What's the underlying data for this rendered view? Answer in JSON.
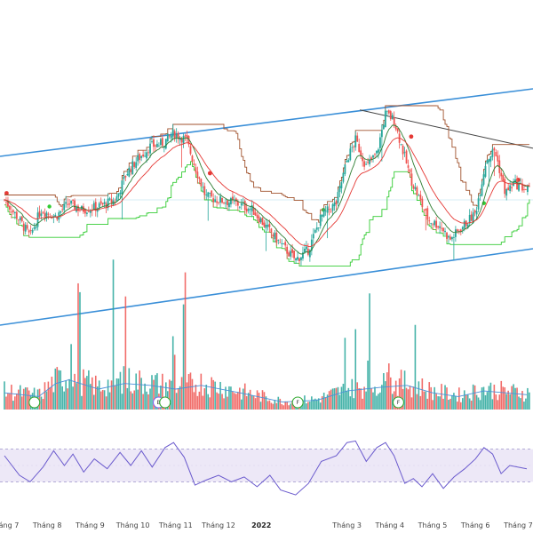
{
  "chart_data": {
    "type": "candlestick",
    "colors": {
      "up": "#26a69a",
      "down": "#ef5350",
      "channel": "#3a8fd8",
      "trendline": "#444444",
      "ema_fast": "#2e7d32",
      "ema_slow": "#e53935",
      "resistance_step": "#a0522d",
      "support_step": "#33cc33",
      "volume_ma": "#4a90d9",
      "rsi_line": "#6a5acd",
      "rsi_band": "#ede8f7",
      "rsi_band_border": "#9a8fc9",
      "signal_circle": "#33aa33",
      "signal_circle_b": "#7b68ee",
      "axis_grid": "#e8e8e8"
    },
    "x_axis": {
      "ticks": [
        "Tháng 7",
        "Tháng 8",
        "Tháng 9",
        "Tháng 10",
        "Tháng 11",
        "Tháng 12",
        "2022",
        "Tháng 3",
        "Tháng 4",
        "Tháng 5",
        "Tháng 6",
        "Tháng 7"
      ],
      "tick_positions_months": [
        0,
        1,
        2,
        3,
        4,
        5,
        6,
        8,
        9,
        10,
        11,
        12
      ]
    },
    "price_path": [
      {
        "m": 0.0,
        "v": 58
      },
      {
        "m": 0.35,
        "v": 52
      },
      {
        "m": 0.6,
        "v": 47
      },
      {
        "m": 0.85,
        "v": 55
      },
      {
        "m": 1.2,
        "v": 53
      },
      {
        "m": 1.5,
        "v": 57
      },
      {
        "m": 1.8,
        "v": 55
      },
      {
        "m": 2.2,
        "v": 56
      },
      {
        "m": 2.6,
        "v": 58
      },
      {
        "m": 2.85,
        "v": 66
      },
      {
        "m": 3.1,
        "v": 70
      },
      {
        "m": 3.4,
        "v": 74
      },
      {
        "m": 3.7,
        "v": 75
      },
      {
        "m": 3.95,
        "v": 78
      },
      {
        "m": 4.25,
        "v": 76
      },
      {
        "m": 4.45,
        "v": 68
      },
      {
        "m": 4.7,
        "v": 59
      },
      {
        "m": 5.0,
        "v": 58
      },
      {
        "m": 5.4,
        "v": 57
      },
      {
        "m": 5.8,
        "v": 55
      },
      {
        "m": 6.1,
        "v": 50
      },
      {
        "m": 6.5,
        "v": 44
      },
      {
        "m": 6.8,
        "v": 40
      },
      {
        "m": 7.1,
        "v": 43
      },
      {
        "m": 7.4,
        "v": 53
      },
      {
        "m": 7.75,
        "v": 57
      },
      {
        "m": 8.0,
        "v": 70
      },
      {
        "m": 8.2,
        "v": 76
      },
      {
        "m": 8.45,
        "v": 68
      },
      {
        "m": 8.7,
        "v": 72
      },
      {
        "m": 8.9,
        "v": 84
      },
      {
        "m": 9.1,
        "v": 82
      },
      {
        "m": 9.3,
        "v": 73
      },
      {
        "m": 9.5,
        "v": 64
      },
      {
        "m": 9.7,
        "v": 58
      },
      {
        "m": 9.9,
        "v": 52
      },
      {
        "m": 10.2,
        "v": 50
      },
      {
        "m": 10.4,
        "v": 46
      },
      {
        "m": 10.7,
        "v": 50
      },
      {
        "m": 11.0,
        "v": 54
      },
      {
        "m": 11.25,
        "v": 70
      },
      {
        "m": 11.45,
        "v": 73
      },
      {
        "m": 11.7,
        "v": 60
      },
      {
        "m": 11.9,
        "v": 63
      },
      {
        "m": 12.2,
        "v": 61
      }
    ],
    "volume_profile": [
      {
        "m": 0.0,
        "v": 18
      },
      {
        "m": 0.8,
        "v": 14
      },
      {
        "m": 1.2,
        "v": 28
      },
      {
        "m": 1.5,
        "v": 32
      },
      {
        "m": 2.2,
        "v": 22
      },
      {
        "m": 2.8,
        "v": 28
      },
      {
        "m": 3.4,
        "v": 26
      },
      {
        "m": 4.0,
        "v": 22
      },
      {
        "m": 4.6,
        "v": 26
      },
      {
        "m": 5.5,
        "v": 18
      },
      {
        "m": 6.5,
        "v": 8
      },
      {
        "m": 7.3,
        "v": 10
      },
      {
        "m": 8.0,
        "v": 20
      },
      {
        "m": 8.8,
        "v": 24
      },
      {
        "m": 9.4,
        "v": 26
      },
      {
        "m": 10.0,
        "v": 18
      },
      {
        "m": 10.6,
        "v": 14
      },
      {
        "m": 11.2,
        "v": 20
      },
      {
        "m": 12.2,
        "v": 16
      }
    ],
    "volume_spikes_months": [
      1.55,
      1.75,
      2.55,
      2.8,
      3.95,
      4.2,
      7.95,
      8.2,
      8.5,
      8.95,
      9.6
    ],
    "rsi": [
      {
        "m": 0.0,
        "v": 62
      },
      {
        "m": 0.35,
        "v": 38
      },
      {
        "m": 0.6,
        "v": 30
      },
      {
        "m": 0.9,
        "v": 48
      },
      {
        "m": 1.15,
        "v": 68
      },
      {
        "m": 1.4,
        "v": 50
      },
      {
        "m": 1.6,
        "v": 64
      },
      {
        "m": 1.85,
        "v": 42
      },
      {
        "m": 2.1,
        "v": 58
      },
      {
        "m": 2.4,
        "v": 46
      },
      {
        "m": 2.7,
        "v": 66
      },
      {
        "m": 2.95,
        "v": 50
      },
      {
        "m": 3.2,
        "v": 68
      },
      {
        "m": 3.45,
        "v": 48
      },
      {
        "m": 3.75,
        "v": 72
      },
      {
        "m": 3.95,
        "v": 78
      },
      {
        "m": 4.2,
        "v": 60
      },
      {
        "m": 4.45,
        "v": 26
      },
      {
        "m": 4.7,
        "v": 32
      },
      {
        "m": 5.0,
        "v": 38
      },
      {
        "m": 5.3,
        "v": 30
      },
      {
        "m": 5.6,
        "v": 36
      },
      {
        "m": 5.9,
        "v": 24
      },
      {
        "m": 6.2,
        "v": 38
      },
      {
        "m": 6.45,
        "v": 20
      },
      {
        "m": 6.8,
        "v": 14
      },
      {
        "m": 7.1,
        "v": 28
      },
      {
        "m": 7.4,
        "v": 55
      },
      {
        "m": 7.75,
        "v": 62
      },
      {
        "m": 8.0,
        "v": 78
      },
      {
        "m": 8.2,
        "v": 80
      },
      {
        "m": 8.45,
        "v": 55
      },
      {
        "m": 8.7,
        "v": 72
      },
      {
        "m": 8.9,
        "v": 78
      },
      {
        "m": 9.1,
        "v": 62
      },
      {
        "m": 9.35,
        "v": 28
      },
      {
        "m": 9.55,
        "v": 34
      },
      {
        "m": 9.75,
        "v": 24
      },
      {
        "m": 10.0,
        "v": 40
      },
      {
        "m": 10.25,
        "v": 22
      },
      {
        "m": 10.5,
        "v": 36
      },
      {
        "m": 10.75,
        "v": 46
      },
      {
        "m": 11.0,
        "v": 58
      },
      {
        "m": 11.2,
        "v": 72
      },
      {
        "m": 11.4,
        "v": 64
      },
      {
        "m": 11.6,
        "v": 40
      },
      {
        "m": 11.8,
        "v": 50
      },
      {
        "m": 12.2,
        "v": 46
      }
    ],
    "rsi_band": [
      30,
      70
    ],
    "signals": [
      {
        "m": 0.7,
        "label": "",
        "variant": "a"
      },
      {
        "m": 3.6,
        "label": "B",
        "variant": "b"
      },
      {
        "m": 3.75,
        "label": "",
        "variant": "a"
      },
      {
        "m": 6.85,
        "label": "F",
        "variant": "a"
      },
      {
        "m": 9.2,
        "label": "F",
        "variant": "a"
      }
    ]
  }
}
